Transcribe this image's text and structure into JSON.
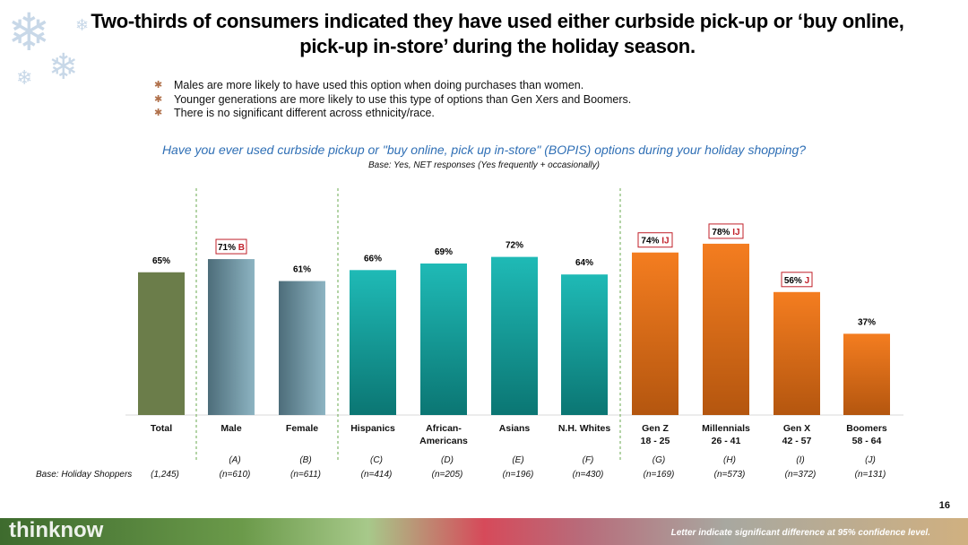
{
  "title": "Two-thirds of consumers indicated they have used either curbside pick-up or ‘buy online, pick-up in-store’ during the holiday season.",
  "bullets": [
    "Males are more likely to have used this option when doing purchases than women.",
    "Younger generations are more likely to use this type of options than Gen Xers and Boomers.",
    "There is no significant different across ethnicity/race."
  ],
  "base_label": "Base: Holiday Shoppers",
  "page_number": "16",
  "footnote": "Letter indicate significant difference at 95% confidence level.",
  "logo": "thinknow",
  "chart_data": {
    "type": "bar",
    "title": "Have you ever used curbside pickup or \"buy online, pick up in-store\" (BOPIS) options during your holiday shopping?",
    "subtitle": "Base: Yes, NET responses (Yes frequently + occasionally)",
    "ylim": [
      0,
      100
    ],
    "categories": [
      "Total",
      "Male",
      "Female",
      "Hispanics",
      "African-\nAmericans",
      "Asians",
      "N.H. Whites",
      "Gen Z\n18 - 25",
      "Millennials\n26 - 41",
      "Gen X\n42 - 57",
      "Boomers\n58 - 64"
    ],
    "values": [
      65,
      71,
      61,
      66,
      69,
      72,
      64,
      74,
      78,
      56,
      37
    ],
    "value_labels": [
      "65%",
      "71%",
      "61%",
      "66%",
      "69%",
      "72%",
      "64%",
      "74%",
      "78%",
      "56%",
      "37%"
    ],
    "sig_letters": [
      "",
      "B",
      "",
      "",
      "",
      "",
      "",
      "IJ",
      "IJ",
      "J",
      ""
    ],
    "column_letters": [
      "",
      "(A)",
      "(B)",
      "(C)",
      "(D)",
      "(E)",
      "(F)",
      "(G)",
      "(H)",
      "(I)",
      "(J)"
    ],
    "bases": [
      "(1,245)",
      "(n=610)",
      "(n=611)",
      "(n=414)",
      "(n=205)",
      "(n=196)",
      "(n=430)",
      "(n=169)",
      "(n=573)",
      "(n=372)",
      "(n=131)"
    ],
    "groups": [
      "total",
      "gender",
      "gender",
      "ethnicity",
      "ethnicity",
      "ethnicity",
      "ethnicity",
      "age",
      "age",
      "age",
      "age"
    ],
    "colors": {
      "total": "#6b7d4a",
      "gender": "#5f8796",
      "ethnicity": "#17a6a3",
      "age": "#e8721c",
      "sig": "#c0202a"
    }
  }
}
